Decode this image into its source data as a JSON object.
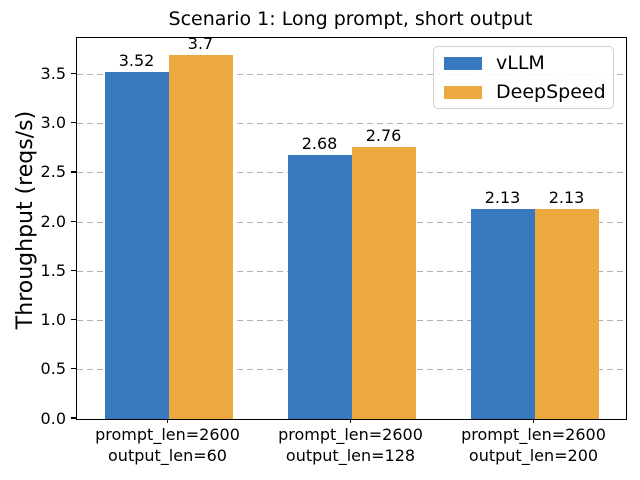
{
  "chart_data": {
    "type": "bar",
    "title": "Scenario 1: Long prompt, short output",
    "ylabel": "Throughput (reqs/s)",
    "xlabel": "",
    "categories": [
      {
        "line1": "prompt_len=2600",
        "line2": "output_len=60"
      },
      {
        "line1": "prompt_len=2600",
        "line2": "output_len=128"
      },
      {
        "line1": "prompt_len=2600",
        "line2": "output_len=200"
      }
    ],
    "series": [
      {
        "name": "vLLM",
        "color": "#3778be",
        "values": [
          3.52,
          2.68,
          2.13
        ]
      },
      {
        "name": "DeepSpeed",
        "color": "#eba93e",
        "values": [
          3.7,
          2.76,
          2.13
        ]
      }
    ],
    "bar_value_labels": [
      [
        "3.52",
        "2.68",
        "2.13"
      ],
      [
        "3.7",
        "2.76",
        "2.13"
      ]
    ],
    "yticks": [
      "0.0",
      "0.5",
      "1.0",
      "1.5",
      "2.0",
      "2.5",
      "3.0",
      "3.5"
    ],
    "ylim": [
      0,
      3.87
    ],
    "grid": {
      "axis": "y",
      "style": "dashed",
      "color": "#b0b0b0"
    },
    "legend": {
      "position": "upper right",
      "entries": [
        "vLLM",
        "DeepSpeed"
      ]
    },
    "colors": {
      "vllm_blue": "#3778be",
      "deepspeed_orange": "#eba93e",
      "spine": "#000000"
    }
  }
}
